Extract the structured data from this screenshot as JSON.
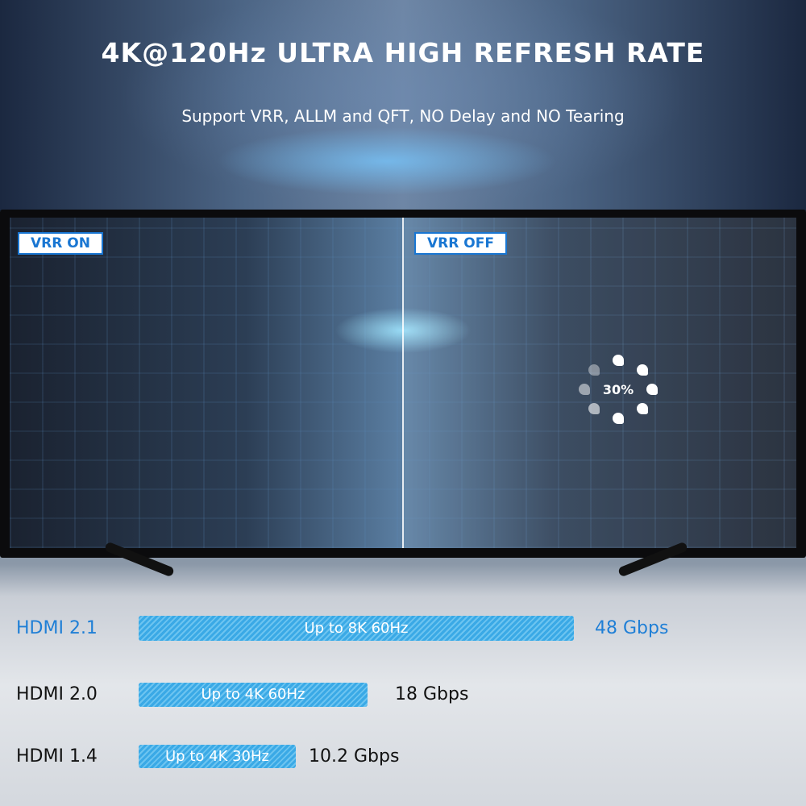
{
  "header": {
    "title": "4K@120Hz ULTRA HIGH REFRESH RATE",
    "subtitle": "Support VRR, ALLM and QFT, NO Delay and NO Tearing"
  },
  "tv": {
    "left_label": "VRR ON",
    "right_label": "VRR OFF",
    "loading_text": "30%"
  },
  "comparison": [
    {
      "version": "HDMI 2.1",
      "spec": "Up to 8K 60Hz",
      "bandwidth": "48 Gbps",
      "bandwidth_gbps": 48,
      "highlight": true
    },
    {
      "version": "HDMI 2.0",
      "spec": "Up to 4K 60Hz",
      "bandwidth": "18 Gbps",
      "bandwidth_gbps": 18,
      "highlight": false
    },
    {
      "version": "HDMI 1.4",
      "spec": "Up to 4K 30Hz",
      "bandwidth": "10.2 Gbps",
      "bandwidth_gbps": 10.2,
      "highlight": false
    }
  ],
  "colors": {
    "accent": "#1f7fd6",
    "bar": "#3aa9e6"
  }
}
